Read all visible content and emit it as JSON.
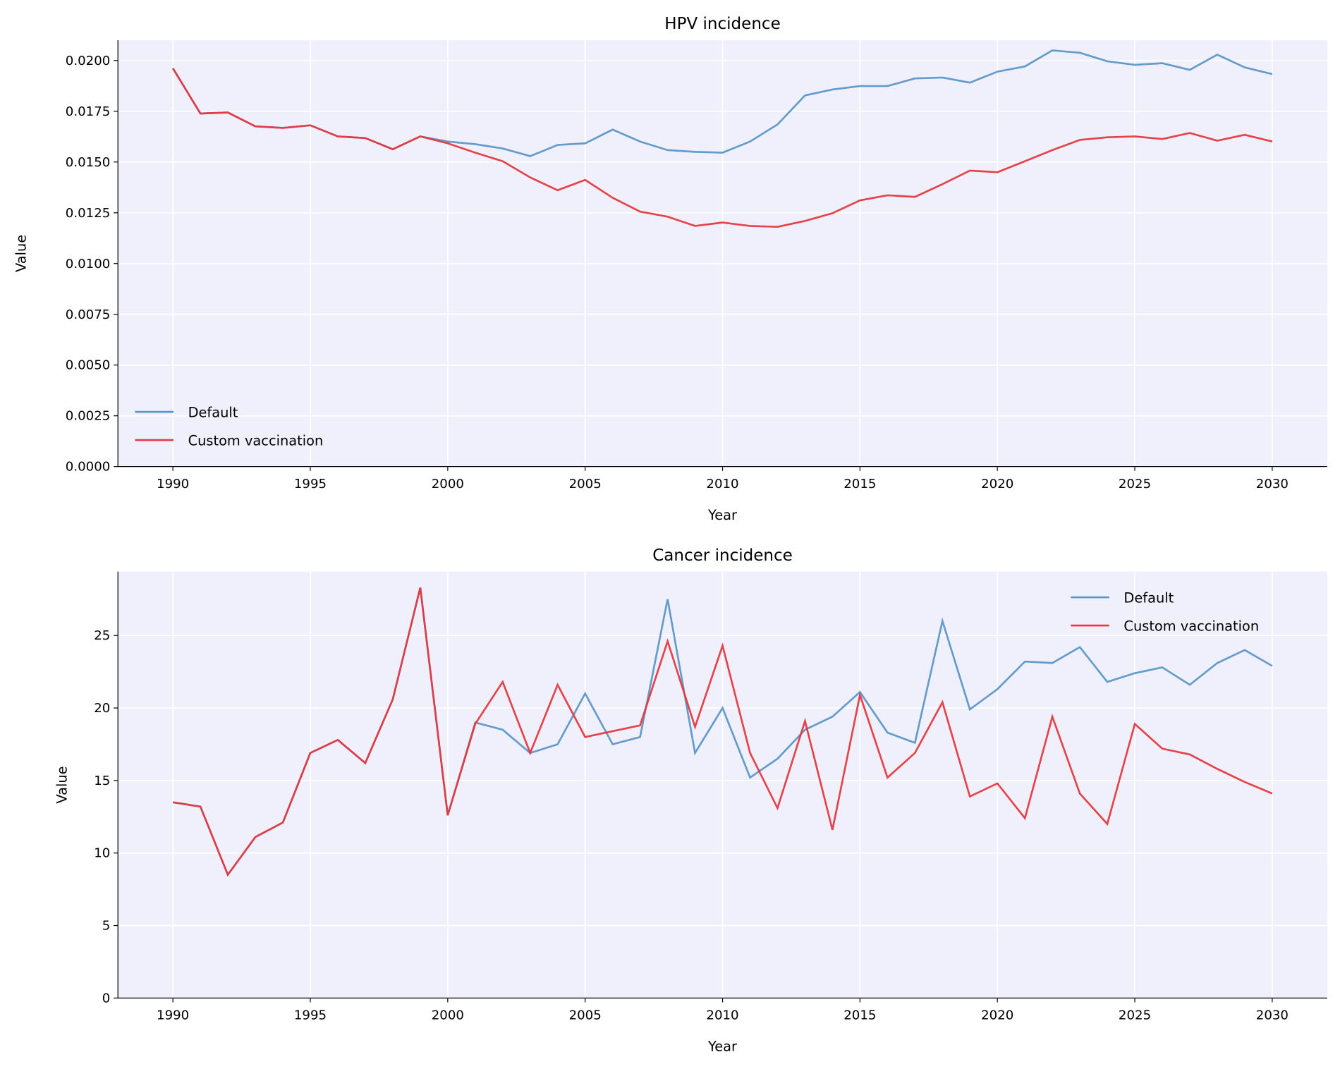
{
  "colors": {
    "background": "#f0f0fc",
    "grid": "#ffffff",
    "Default": "#5b96c8",
    "Custom vaccination": "#e5383f"
  },
  "chart_data": [
    {
      "type": "line",
      "title": "HPV incidence",
      "xlabel": "Year",
      "ylabel": "Value",
      "xlim": [
        1988,
        2032
      ],
      "ylim": [
        0,
        0.021
      ],
      "xticks": [
        1990,
        1995,
        2000,
        2005,
        2010,
        2015,
        2020,
        2025,
        2030
      ],
      "yticks": [
        "0.0000",
        "0.0025",
        "0.0050",
        "0.0075",
        "0.0100",
        "0.0125",
        "0.0150",
        "0.0175",
        "0.0200"
      ],
      "grid": true,
      "legend": "lower-left",
      "x_start": 1990,
      "series": [
        {
          "name": "Default",
          "values": [
            0.01962,
            0.01739,
            0.01744,
            0.01676,
            0.01668,
            0.01681,
            0.01626,
            0.01618,
            0.01563,
            0.01626,
            0.01601,
            0.01588,
            0.01567,
            0.01529,
            0.01584,
            0.01592,
            0.0166,
            0.01601,
            0.01559,
            0.0155,
            0.01546,
            0.01601,
            0.01685,
            0.01828,
            0.01857,
            0.01874,
            0.01874,
            0.01912,
            0.01916,
            0.01891,
            0.01945,
            0.01971,
            0.0205,
            0.02038,
            0.01996,
            0.01979,
            0.01987,
            0.01954,
            0.02029,
            0.01966,
            0.01933
          ]
        },
        {
          "name": "Custom vaccination",
          "values": [
            0.01962,
            0.01739,
            0.01744,
            0.01676,
            0.01668,
            0.01681,
            0.01626,
            0.01618,
            0.01563,
            0.01626,
            0.01592,
            0.01546,
            0.01504,
            0.01424,
            0.01361,
            0.01412,
            0.01324,
            0.01256,
            0.01231,
            0.01185,
            0.01202,
            0.01185,
            0.01181,
            0.0121,
            0.01248,
            0.01311,
            0.01336,
            0.01328,
            0.01391,
            0.01458,
            0.0145,
            0.01504,
            0.01559,
            0.01609,
            0.01622,
            0.01626,
            0.01613,
            0.01643,
            0.01605,
            0.01634,
            0.01601
          ]
        }
      ]
    },
    {
      "type": "line",
      "title": "Cancer incidence",
      "xlabel": "Year",
      "ylabel": "Value",
      "xlim": [
        1988,
        2032
      ],
      "ylim": [
        0,
        29.4
      ],
      "xticks": [
        1990,
        1995,
        2000,
        2005,
        2010,
        2015,
        2020,
        2025,
        2030
      ],
      "yticks": [
        "0",
        "5",
        "10",
        "15",
        "20",
        "25"
      ],
      "grid": true,
      "legend": "upper-right",
      "x_start": 1990,
      "series": [
        {
          "name": "Default",
          "values": [
            13.5,
            13.2,
            8.5,
            11.1,
            12.1,
            16.9,
            17.8,
            16.2,
            20.6,
            28.3,
            12.6,
            19.0,
            18.5,
            16.9,
            17.5,
            21.0,
            17.5,
            18.0,
            27.5,
            16.9,
            20.0,
            15.2,
            16.5,
            18.5,
            19.4,
            21.1,
            18.3,
            17.6,
            26.0,
            19.9,
            21.3,
            23.2,
            23.1,
            24.2,
            21.8,
            22.4,
            22.8,
            21.6,
            23.1,
            24.0,
            22.9
          ]
        },
        {
          "name": "Custom vaccination",
          "values": [
            13.5,
            13.2,
            8.5,
            11.1,
            12.1,
            16.9,
            17.8,
            16.2,
            20.6,
            28.3,
            12.6,
            18.9,
            21.8,
            16.9,
            21.6,
            18.0,
            18.4,
            18.8,
            24.6,
            18.7,
            24.3,
            16.9,
            13.1,
            19.1,
            11.6,
            20.9,
            15.2,
            16.9,
            20.4,
            13.9,
            14.8,
            12.4,
            19.4,
            14.1,
            12.0,
            18.9,
            17.2,
            16.8,
            15.8,
            14.9,
            14.1
          ]
        }
      ]
    }
  ]
}
